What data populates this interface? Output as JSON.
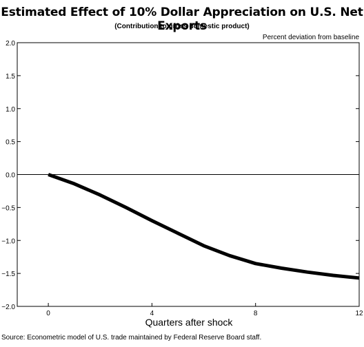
{
  "title": "Estimated Effect of 10% Dollar Appreciation on U.S. Net Exports",
  "subtitle": "(Contribution to gross domestic product)",
  "source": "Source:  Econometric model of U.S. trade maintained by Federal Reserve Board staff.",
  "chart_data": {
    "type": "line",
    "units_note": "Percent deviation from baseline",
    "xlabel": "Quarters after shock",
    "ylabel": "",
    "xlim": [
      -1.2,
      12
    ],
    "ylim": [
      -2.0,
      2.0
    ],
    "x_ticks": [
      0,
      4,
      8,
      12
    ],
    "y_ticks": [
      -2.0,
      -1.5,
      -1.0,
      -0.5,
      0.0,
      0.5,
      1.0,
      1.5,
      2.0
    ],
    "y_tick_labels": [
      "−2.0",
      "−1.5",
      "−1.0",
      "−0.5",
      "0.0",
      "0.5",
      "1.0",
      "1.5",
      "2.0"
    ],
    "grid": false,
    "zero_line": true,
    "series": [
      {
        "color": "#000000",
        "x": [
          0,
          1,
          2,
          3,
          4,
          5,
          6,
          7,
          8,
          9,
          10,
          11,
          12
        ],
        "y": [
          0.0,
          -0.14,
          -0.31,
          -0.5,
          -0.7,
          -0.89,
          -1.08,
          -1.23,
          -1.35,
          -1.42,
          -1.48,
          -1.53,
          -1.57
        ]
      }
    ]
  }
}
